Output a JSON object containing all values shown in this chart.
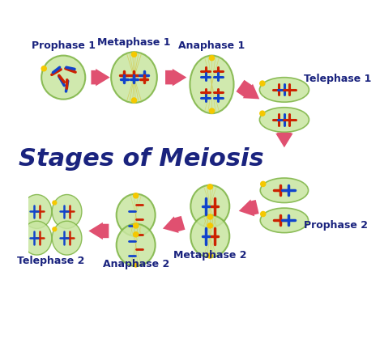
{
  "title": "Stages of Meiosis",
  "title_color": "#1a237e",
  "title_fontsize": 22,
  "background_color": "#ffffff",
  "cell_color": "#c8e6a0",
  "cell_edge_color": "#7cb342",
  "cell_alpha": 0.85,
  "spindle_color": "#d4c84a",
  "arrow_color": "#e05070",
  "stages_row1": [
    "Prophase 1",
    "Metaphase 1",
    "Anaphase 1",
    "Telephase 1"
  ],
  "stages_row2": [
    "Telephase 2",
    "Anaphase 2",
    "Metaphase 2",
    "Prophase 2"
  ],
  "label_color": "#1a237e",
  "label_fontsize": 9,
  "chr_red": "#cc2200",
  "chr_blue": "#1144cc"
}
